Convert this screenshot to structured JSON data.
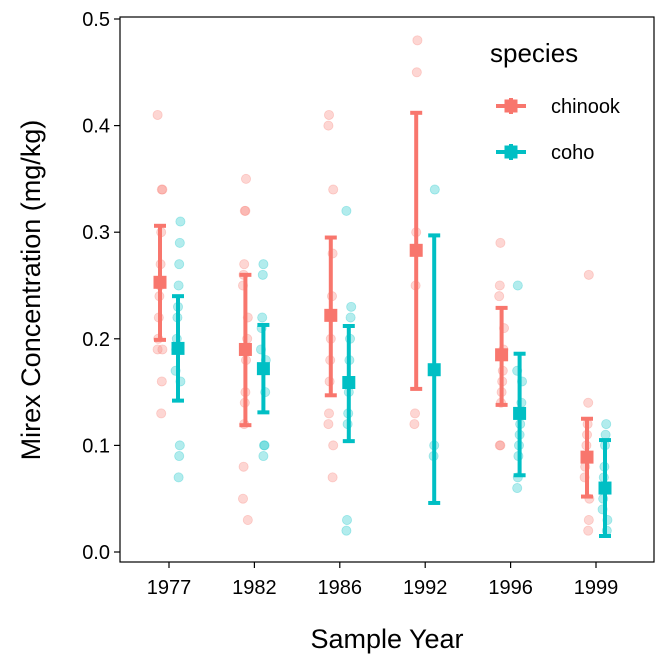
{
  "chart_data": {
    "type": "scatter",
    "title": "",
    "xlabel": "Sample Year",
    "ylabel": "Mirex Concentration (mg/kg)",
    "categories": [
      "1977",
      "1982",
      "1986",
      "1992",
      "1996",
      "1999"
    ],
    "ylim": [
      0.0,
      0.5
    ],
    "yticks": [
      "0.0",
      "0.1",
      "0.2",
      "0.3",
      "0.4",
      "0.5"
    ],
    "grid": false,
    "legend": {
      "title": "species",
      "position": "top-right"
    },
    "series": [
      {
        "name": "chinook",
        "color": "#F8766D",
        "means": [
          0.253,
          0.19,
          0.222,
          0.283,
          0.185,
          0.089
        ],
        "lower": [
          0.199,
          0.119,
          0.147,
          0.153,
          0.138,
          0.052
        ],
        "upper": [
          0.306,
          0.26,
          0.295,
          0.412,
          0.229,
          0.125
        ],
        "points": [
          [
            0.41,
            0.34,
            0.34,
            0.3,
            0.27,
            0.25,
            0.24,
            0.22,
            0.2,
            0.19,
            0.19,
            0.16,
            0.13
          ],
          [
            0.35,
            0.32,
            0.32,
            0.27,
            0.26,
            0.25,
            0.22,
            0.2,
            0.19,
            0.18,
            0.15,
            0.14,
            0.12,
            0.08,
            0.05,
            0.03
          ],
          [
            0.41,
            0.4,
            0.34,
            0.28,
            0.24,
            0.22,
            0.2,
            0.18,
            0.16,
            0.13,
            0.12,
            0.1,
            0.07
          ],
          [
            0.48,
            0.45,
            0.3,
            0.25,
            0.13,
            0.12
          ],
          [
            0.29,
            0.25,
            0.24,
            0.21,
            0.19,
            0.17,
            0.16,
            0.15,
            0.14,
            0.1,
            0.1
          ],
          [
            0.26,
            0.14,
            0.12,
            0.11,
            0.1,
            0.09,
            0.08,
            0.07,
            0.05,
            0.03,
            0.02
          ]
        ]
      },
      {
        "name": "coho",
        "color": "#00BFC4",
        "means": [
          0.191,
          0.172,
          0.159,
          0.171,
          0.13,
          0.06
        ],
        "lower": [
          0.142,
          0.131,
          0.104,
          0.046,
          0.072,
          0.015
        ],
        "upper": [
          0.24,
          0.213,
          0.212,
          0.297,
          0.186,
          0.105
        ],
        "points": [
          [
            0.31,
            0.29,
            0.27,
            0.25,
            0.23,
            0.22,
            0.2,
            0.19,
            0.17,
            0.16,
            0.1,
            0.09,
            0.07
          ],
          [
            0.27,
            0.26,
            0.22,
            0.21,
            0.19,
            0.18,
            0.15,
            0.1,
            0.1,
            0.09
          ],
          [
            0.32,
            0.23,
            0.22,
            0.2,
            0.18,
            0.15,
            0.13,
            0.12,
            0.03,
            0.02
          ],
          [
            0.34,
            0.1,
            0.09
          ],
          [
            0.25,
            0.17,
            0.16,
            0.14,
            0.13,
            0.12,
            0.11,
            0.1,
            0.09,
            0.07,
            0.06
          ],
          [
            0.12,
            0.11,
            0.1,
            0.08,
            0.07,
            0.05,
            0.04,
            0.03,
            0.02
          ]
        ]
      }
    ]
  }
}
